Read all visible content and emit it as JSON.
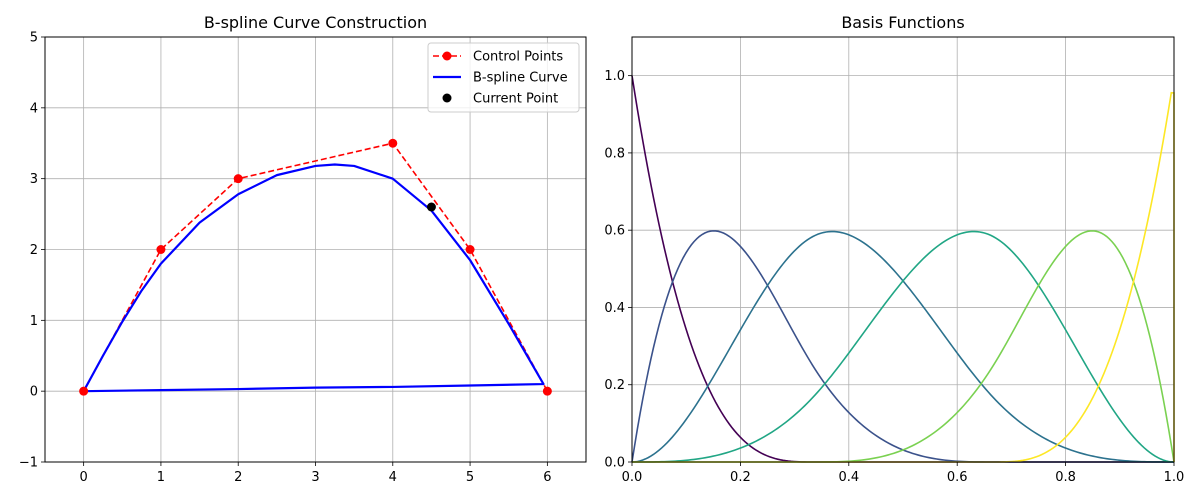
{
  "colors": {
    "control": "#ff0000",
    "curve": "#0000ff",
    "current": "#000000",
    "grid": "#b0b0b0",
    "basis": [
      "#440154",
      "#3b528b",
      "#2c728e",
      "#21a685",
      "#7ad151",
      "#fde725"
    ]
  },
  "chart_data": [
    {
      "type": "line",
      "title": "B-spline Curve Construction",
      "xlabel": "",
      "ylabel": "",
      "xlim": [
        -0.5,
        6.5
      ],
      "ylim": [
        -1,
        5
      ],
      "xticks": [
        0,
        1,
        2,
        3,
        4,
        5,
        6
      ],
      "xtick_labels": [
        "0",
        "1",
        "2",
        "3",
        "4",
        "5",
        "6"
      ],
      "yticks": [
        -1,
        0,
        1,
        2,
        3,
        4,
        5
      ],
      "ytick_labels": [
        "−1",
        "0",
        "1",
        "2",
        "3",
        "4",
        "5"
      ],
      "grid": true,
      "legend_position": "top-right",
      "legend": [
        "Control Points",
        "B-spline Curve",
        "Current Point"
      ],
      "series": [
        {
          "name": "Control Points",
          "style": "dashed-line-with-markers",
          "color": "#ff0000",
          "x": [
            0,
            1,
            2,
            4,
            5,
            6
          ],
          "y": [
            0,
            2,
            3,
            3.5,
            2,
            0
          ]
        },
        {
          "name": "B-spline Curve",
          "style": "solid-line",
          "color": "#0000ff",
          "x": [
            0,
            0.25,
            0.5,
            0.75,
            1,
            1.5,
            2,
            2.5,
            3,
            3.25,
            3.5,
            4,
            4.5,
            5,
            5.5,
            5.95,
            5.0,
            4.0,
            3.0,
            2.0,
            1.0,
            0
          ],
          "y": [
            0,
            0.5,
            0.98,
            1.42,
            1.8,
            2.38,
            2.78,
            3.05,
            3.18,
            3.2,
            3.18,
            3.0,
            2.55,
            1.85,
            0.95,
            0.1,
            0.08,
            0.06,
            0.05,
            0.03,
            0.015,
            0
          ]
        },
        {
          "name": "Current Point",
          "style": "marker",
          "color": "#000000",
          "x": [
            4.5
          ],
          "y": [
            2.6
          ]
        }
      ]
    },
    {
      "type": "line",
      "title": "Basis Functions",
      "xlabel": "",
      "ylabel": "",
      "xlim": [
        0,
        1
      ],
      "ylim": [
        0,
        1.1
      ],
      "xticks": [
        0,
        0.2,
        0.4,
        0.6,
        0.8,
        1.0
      ],
      "xtick_labels": [
        "0.0",
        "0.2",
        "0.4",
        "0.6",
        "0.8",
        "1.0"
      ],
      "yticks": [
        0,
        0.2,
        0.4,
        0.6,
        0.8,
        1.0
      ],
      "ytick_labels": [
        "0.0",
        "0.2",
        "0.4",
        "0.6",
        "0.8",
        "1.0"
      ],
      "grid": true,
      "knots": [
        0,
        0,
        0,
        0,
        0.3333,
        0.6667,
        1,
        1,
        1,
        1
      ],
      "degree": 3,
      "series": [
        {
          "color": "#440154",
          "peak_x": 0.0,
          "peak_y": 1.0
        },
        {
          "color": "#3b528b",
          "peak_x": 0.15,
          "peak_y": 0.6
        },
        {
          "color": "#2c728e",
          "peak_x": 0.37,
          "peak_y": 0.6
        },
        {
          "color": "#21a685",
          "peak_x": 0.63,
          "peak_y": 0.6
        },
        {
          "color": "#7ad151",
          "peak_x": 0.85,
          "peak_y": 0.6
        },
        {
          "color": "#fde725",
          "peak_x": 0.995,
          "peak_y": 0.955
        }
      ]
    }
  ]
}
